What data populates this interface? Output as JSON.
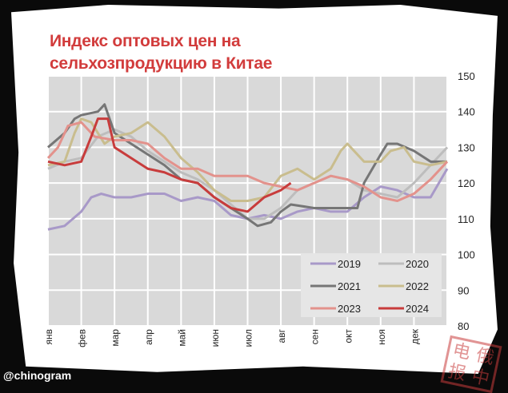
{
  "chart_data": {
    "type": "line",
    "title": "Индекс оптовых цен на сельхозпродукцию в Китае",
    "title_lines": [
      "Индекс оптовых цен на",
      "сельхозпродукцию в Китае"
    ],
    "x_categories": [
      "янв",
      "фев",
      "мар",
      "апр",
      "май",
      "июн",
      "июл",
      "авг",
      "сен",
      "окт",
      "ноя",
      "дек"
    ],
    "ylim": [
      80,
      150
    ],
    "y_ticks": [
      150,
      140,
      130,
      120,
      110,
      100,
      90,
      80
    ],
    "y_axis_side": "right",
    "grid": true,
    "legend_placement": "bottom-right",
    "x_unit": "month index (0 = start of янв, 12 = end of дек)",
    "series": [
      {
        "name": "2019",
        "color": "#a899c8",
        "points": [
          [
            0,
            107
          ],
          [
            0.5,
            108
          ],
          [
            1,
            112
          ],
          [
            1.3,
            116
          ],
          [
            1.6,
            117
          ],
          [
            2,
            116
          ],
          [
            2.5,
            116
          ],
          [
            3,
            117
          ],
          [
            3.5,
            117
          ],
          [
            4,
            115
          ],
          [
            4.5,
            116
          ],
          [
            5,
            115
          ],
          [
            5.5,
            111
          ],
          [
            6,
            110
          ],
          [
            6.5,
            111
          ],
          [
            7,
            110
          ],
          [
            7.5,
            112
          ],
          [
            8,
            113
          ],
          [
            8.5,
            112
          ],
          [
            9,
            112
          ],
          [
            9.5,
            116
          ],
          [
            10,
            119
          ],
          [
            10.5,
            118
          ],
          [
            11,
            116
          ],
          [
            11.5,
            116
          ],
          [
            12,
            124
          ]
        ]
      },
      {
        "name": "2020",
        "color": "#bdbdbd",
        "points": [
          [
            0,
            124
          ],
          [
            0.5,
            126
          ],
          [
            1,
            127
          ],
          [
            1.5,
            133
          ],
          [
            2,
            135
          ],
          [
            2.5,
            133
          ],
          [
            3,
            129
          ],
          [
            3.5,
            126
          ],
          [
            4,
            123
          ],
          [
            4.5,
            121
          ],
          [
            5,
            118
          ],
          [
            5.5,
            114
          ],
          [
            6,
            110
          ],
          [
            6.5,
            110
          ],
          [
            7,
            113
          ],
          [
            7.5,
            118
          ],
          [
            8,
            120
          ],
          [
            8.5,
            122
          ],
          [
            9,
            121
          ],
          [
            9.5,
            118
          ],
          [
            10,
            117
          ],
          [
            10.5,
            116
          ],
          [
            11,
            120
          ],
          [
            11.5,
            125
          ],
          [
            12,
            130
          ]
        ]
      },
      {
        "name": "2021",
        "color": "#767676",
        "points": [
          [
            0,
            130
          ],
          [
            0.5,
            134
          ],
          [
            0.8,
            138
          ],
          [
            1,
            139
          ],
          [
            1.5,
            140
          ],
          [
            1.7,
            142
          ],
          [
            2,
            134
          ],
          [
            2.5,
            131
          ],
          [
            3,
            128
          ],
          [
            3.5,
            125
          ],
          [
            4,
            121
          ],
          [
            4.5,
            120
          ],
          [
            5,
            116
          ],
          [
            5.5,
            113
          ],
          [
            6,
            110
          ],
          [
            6.3,
            108
          ],
          [
            6.7,
            109
          ],
          [
            7,
            112
          ],
          [
            7.3,
            114
          ],
          [
            8,
            113
          ],
          [
            8.5,
            113
          ],
          [
            9,
            113
          ],
          [
            9.3,
            113
          ],
          [
            9.5,
            120
          ],
          [
            10,
            128
          ],
          [
            10.2,
            131
          ],
          [
            10.5,
            131
          ],
          [
            11,
            129
          ],
          [
            11.5,
            126
          ],
          [
            12,
            126
          ]
        ]
      },
      {
        "name": "2022",
        "color": "#c9bd8e",
        "points": [
          [
            0,
            125
          ],
          [
            0.5,
            126
          ],
          [
            0.8,
            134
          ],
          [
            1,
            138
          ],
          [
            1.3,
            137
          ],
          [
            1.7,
            131
          ],
          [
            2,
            133
          ],
          [
            2.5,
            134
          ],
          [
            3,
            137
          ],
          [
            3.5,
            133
          ],
          [
            4,
            127
          ],
          [
            4.5,
            123
          ],
          [
            5,
            118
          ],
          [
            5.5,
            115
          ],
          [
            6,
            115
          ],
          [
            6.5,
            116
          ],
          [
            7,
            122
          ],
          [
            7.5,
            124
          ],
          [
            8,
            121
          ],
          [
            8.5,
            124
          ],
          [
            8.8,
            129
          ],
          [
            9,
            131
          ],
          [
            9.5,
            126
          ],
          [
            10,
            126
          ],
          [
            10.3,
            129
          ],
          [
            10.7,
            130
          ],
          [
            11,
            126
          ],
          [
            11.5,
            125
          ],
          [
            12,
            126
          ]
        ]
      },
      {
        "name": "2023",
        "color": "#e3928c",
        "points": [
          [
            0,
            127
          ],
          [
            0.3,
            130
          ],
          [
            0.6,
            136
          ],
          [
            1,
            137
          ],
          [
            1.4,
            133
          ],
          [
            2,
            132
          ],
          [
            2.5,
            132
          ],
          [
            3,
            131
          ],
          [
            3.5,
            127
          ],
          [
            4,
            124
          ],
          [
            4.5,
            124
          ],
          [
            5,
            122
          ],
          [
            5.5,
            122
          ],
          [
            6,
            122
          ],
          [
            6.5,
            120
          ],
          [
            7,
            119
          ],
          [
            7.5,
            118
          ],
          [
            8,
            120
          ],
          [
            8.5,
            122
          ],
          [
            9,
            121
          ],
          [
            9.5,
            119
          ],
          [
            10,
            116
          ],
          [
            10.5,
            115
          ],
          [
            11,
            117
          ],
          [
            11.5,
            121
          ],
          [
            12,
            126
          ]
        ]
      },
      {
        "name": "2024",
        "color": "#c83c3c",
        "points": [
          [
            0,
            126
          ],
          [
            0.5,
            125
          ],
          [
            1,
            126
          ],
          [
            1.3,
            133
          ],
          [
            1.5,
            138
          ],
          [
            1.8,
            138
          ],
          [
            2,
            130
          ],
          [
            2.5,
            127
          ],
          [
            3,
            124
          ],
          [
            3.5,
            123
          ],
          [
            4,
            121
          ],
          [
            4.5,
            120
          ],
          [
            5,
            116
          ],
          [
            5.5,
            113
          ],
          [
            6,
            112
          ],
          [
            6.5,
            116
          ],
          [
            7,
            118
          ],
          [
            7.3,
            120
          ]
        ]
      }
    ]
  },
  "watermark": "@chinogram",
  "stamp": {
    "chars": [
      "电",
      "俄",
      "报",
      "中"
    ]
  }
}
